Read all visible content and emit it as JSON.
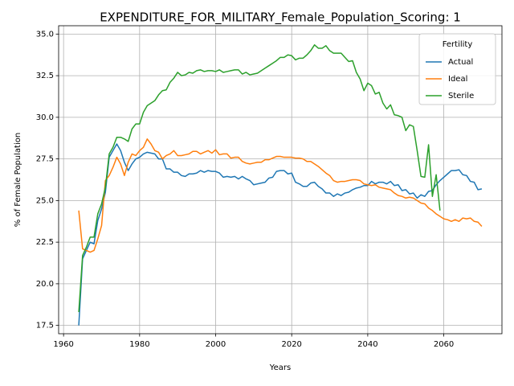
{
  "chart_data": {
    "type": "line",
    "title": "EXPENDITURE_FOR_MILITARY_Female_Population_Scoring: 1",
    "x_label": "Years",
    "y_label": "% of Female Population",
    "legend_title": "Fertility",
    "legend_loc": "upper right",
    "grid": true,
    "xlim": [
      1958.7,
      2075.3
    ],
    "xticks": [
      1960,
      1980,
      2000,
      2020,
      2040,
      2060
    ],
    "ylim": [
      17.0,
      35.5
    ],
    "yticks": [
      17.5,
      {
        "value": 20,
        "label": "20.0"
      },
      22.5,
      {
        "value": 25,
        "label": "25.0"
      },
      27.5,
      {
        "value": 30,
        "label": "30.0"
      },
      32.5,
      {
        "value": 35,
        "label": "35.0"
      }
    ],
    "x": [
      1964,
      1965,
      1966,
      1967,
      1968,
      1969,
      1970,
      1971,
      1972,
      1973,
      1974,
      1975,
      1976,
      1977,
      1978,
      1979,
      1980,
      1981,
      1982,
      1983,
      1984,
      1985,
      1986,
      1987,
      1988,
      1989,
      1990,
      1991,
      1992,
      1993,
      1994,
      1995,
      1996,
      1997,
      1998,
      1999,
      2000,
      2001,
      2002,
      2003,
      2004,
      2005,
      2006,
      2007,
      2008,
      2009,
      2010,
      2011,
      2012,
      2013,
      2014,
      2015,
      2016,
      2017,
      2018,
      2019,
      2020,
      2021,
      2022,
      2023,
      2024,
      2025,
      2026,
      2027,
      2028,
      2029,
      2030,
      2031,
      2032,
      2033,
      2034,
      2035,
      2036,
      2037,
      2038,
      2039,
      2040,
      2041,
      2042,
      2043,
      2044,
      2045,
      2046,
      2047,
      2048,
      2049,
      2050,
      2051,
      2052,
      2053,
      2054,
      2055,
      2056,
      2057,
      2058,
      2059,
      2060,
      2061,
      2062,
      2063,
      2064,
      2065,
      2066,
      2067,
      2068,
      2069,
      2070
    ],
    "series": [
      {
        "name": "Actual",
        "color": "#1f77b4",
        "values": [
          17.5,
          21.5,
          22.0,
          22.5,
          22.4,
          23.8,
          24.5,
          25.5,
          27.6,
          28.0,
          28.4,
          28.0,
          27.3,
          26.8,
          27.2,
          27.5,
          27.6,
          27.8,
          27.9,
          27.85,
          27.8,
          27.5,
          27.5,
          26.9,
          26.9,
          26.7,
          26.7,
          26.5,
          26.45,
          26.6,
          26.6,
          26.65,
          26.8,
          26.7,
          26.8,
          26.75,
          26.75,
          26.65,
          26.4,
          26.45,
          26.4,
          26.45,
          26.3,
          26.45,
          26.3,
          26.2,
          25.95,
          26.0,
          26.05,
          26.1,
          26.35,
          26.4,
          26.75,
          26.8,
          26.8,
          26.6,
          26.65,
          26.1,
          26.0,
          25.85,
          25.85,
          26.05,
          26.1,
          25.85,
          25.7,
          25.45,
          25.45,
          25.25,
          25.4,
          25.3,
          25.45,
          25.5,
          25.65,
          25.75,
          25.8,
          25.9,
          25.9,
          26.15,
          26.0,
          26.1,
          26.1,
          26.0,
          26.15,
          25.9,
          25.95,
          25.6,
          25.65,
          25.4,
          25.45,
          25.15,
          25.35,
          25.25,
          25.55,
          25.6,
          25.95,
          26.2,
          26.4,
          26.6,
          26.8,
          26.8,
          26.85,
          26.55,
          26.5,
          26.15,
          26.1,
          25.65,
          25.7
        ]
      },
      {
        "name": "Ideal",
        "color": "#ff7f0e",
        "values": [
          24.4,
          22.1,
          22.0,
          21.9,
          22.0,
          22.7,
          23.5,
          26.2,
          26.5,
          27.0,
          27.6,
          27.2,
          26.5,
          27.3,
          27.8,
          27.7,
          28.0,
          28.2,
          28.7,
          28.4,
          28.0,
          27.9,
          27.5,
          27.7,
          27.8,
          28.0,
          27.7,
          27.7,
          27.75,
          27.8,
          27.95,
          27.95,
          27.8,
          27.9,
          28.0,
          27.85,
          28.05,
          27.75,
          27.8,
          27.8,
          27.55,
          27.6,
          27.6,
          27.35,
          27.25,
          27.2,
          27.25,
          27.3,
          27.3,
          27.45,
          27.45,
          27.55,
          27.65,
          27.65,
          27.6,
          27.6,
          27.6,
          27.55,
          27.55,
          27.5,
          27.35,
          27.35,
          27.2,
          27.05,
          26.85,
          26.65,
          26.5,
          26.2,
          26.1,
          26.15,
          26.15,
          26.2,
          26.25,
          26.25,
          26.2,
          26.0,
          25.95,
          25.9,
          25.95,
          25.8,
          25.75,
          25.7,
          25.65,
          25.45,
          25.3,
          25.25,
          25.15,
          25.2,
          25.15,
          25.0,
          24.85,
          24.8,
          24.55,
          24.4,
          24.2,
          24.05,
          23.9,
          23.85,
          23.75,
          23.85,
          23.75,
          23.95,
          23.9,
          23.95,
          23.75,
          23.7,
          23.45
        ]
      },
      {
        "name": "Sterile",
        "color": "#2ca02c",
        "values": [
          18.3,
          21.7,
          22.2,
          22.8,
          22.8,
          24.2,
          24.8,
          25.8,
          27.8,
          28.2,
          28.8,
          28.8,
          28.7,
          28.55,
          29.3,
          29.6,
          29.6,
          30.3,
          30.7,
          30.85,
          31.0,
          31.35,
          31.6,
          31.65,
          32.1,
          32.35,
          32.7,
          32.5,
          32.55,
          32.7,
          32.65,
          32.8,
          32.85,
          32.75,
          32.8,
          32.8,
          32.75,
          32.85,
          32.7,
          32.75,
          32.8,
          32.85,
          32.85,
          32.6,
          32.7,
          32.55,
          32.6,
          32.65,
          32.8,
          32.95,
          33.1,
          33.25,
          33.4,
          33.6,
          33.6,
          33.75,
          33.7,
          33.45,
          33.55,
          33.55,
          33.75,
          34.0,
          34.35,
          34.15,
          34.15,
          34.3,
          34.0,
          33.85,
          33.85,
          33.85,
          33.6,
          33.35,
          33.4,
          32.7,
          32.3,
          31.6,
          32.05,
          31.9,
          31.4,
          31.5,
          30.85,
          30.5,
          30.75,
          30.15,
          30.1,
          30.0,
          29.2,
          29.55,
          29.45,
          28.0,
          26.45,
          26.4,
          28.35,
          25.25,
          26.55,
          24.4,
          null,
          null,
          null,
          null,
          null,
          null,
          null,
          null,
          null,
          null,
          null
        ]
      }
    ]
  }
}
